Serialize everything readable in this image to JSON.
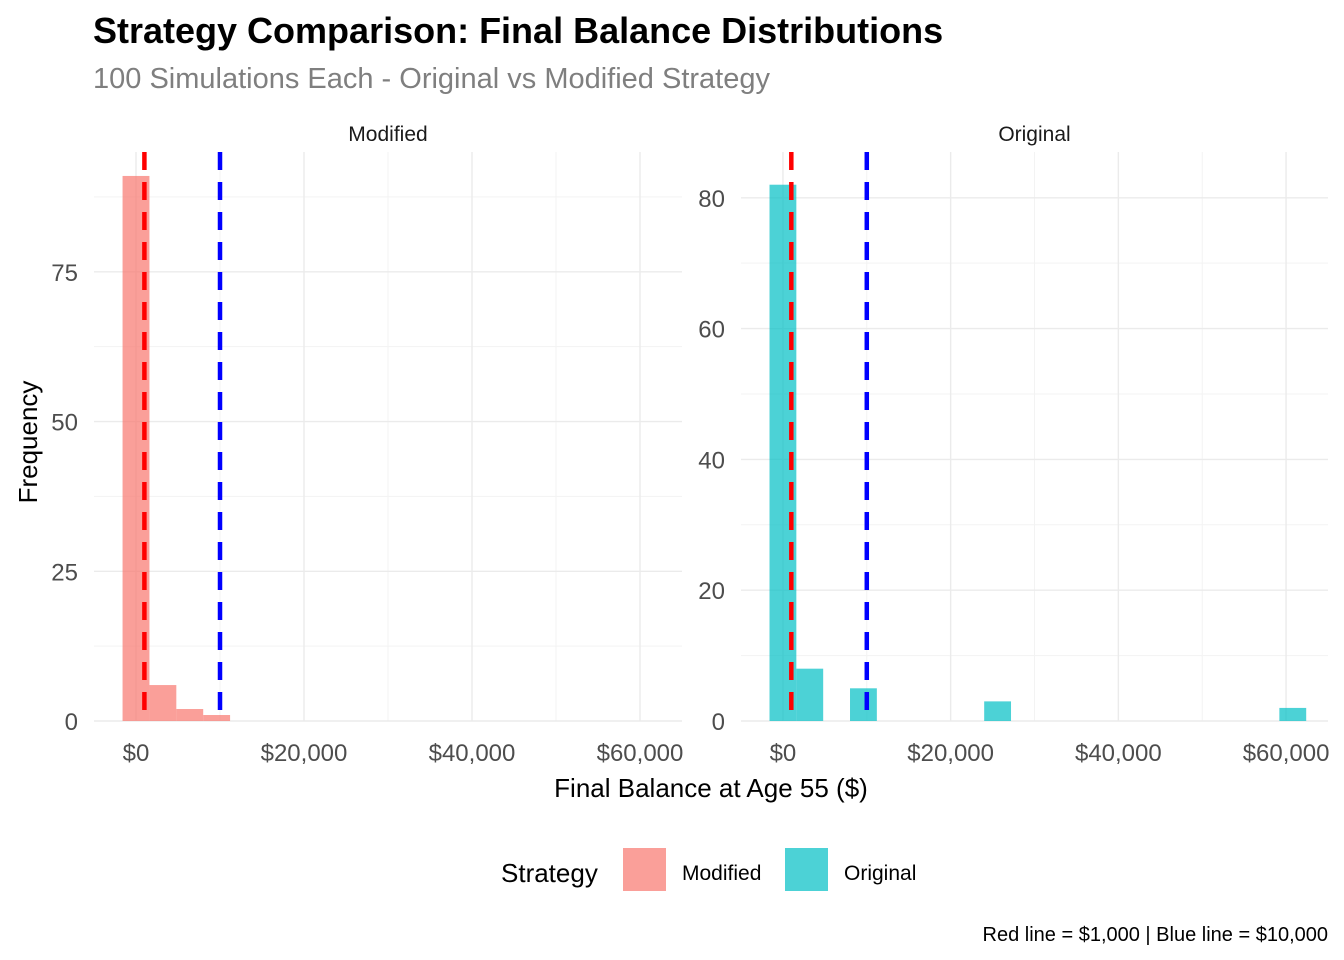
{
  "chart_data": {
    "type": "bar",
    "title": "Strategy Comparison: Final Balance Distributions",
    "subtitle": "100 Simulations Each - Original vs Modified Strategy",
    "xlabel": "Final Balance at Age 55 ($)",
    "ylabel": "Frequency",
    "caption": "Red line = $1,000 | Blue line = $10,000",
    "legend": {
      "title": "Strategy",
      "position": "bottom",
      "items": [
        {
          "label": "Modified",
          "color": "#F8766D"
        },
        {
          "label": "Original",
          "color": "#00BFC4"
        }
      ]
    },
    "bin_width": 3200,
    "reference_lines": [
      {
        "x": 1000,
        "color": "#FF0000",
        "style": "dashed"
      },
      {
        "x": 10000,
        "color": "#0000FF",
        "style": "dashed"
      }
    ],
    "grid": true,
    "panels": [
      {
        "strip": "Modified",
        "fill": "#F8766D",
        "xlim": [
          -5000,
          65000
        ],
        "ylim": [
          0,
          95
        ],
        "xticks": [
          {
            "v": 0,
            "label": "$0"
          },
          {
            "v": 20000,
            "label": "$20,000"
          },
          {
            "v": 40000,
            "label": "$40,000"
          },
          {
            "v": 60000,
            "label": "$60,000"
          }
        ],
        "yticks": [
          {
            "v": 0,
            "label": "0"
          },
          {
            "v": 25,
            "label": "25"
          },
          {
            "v": 50,
            "label": "50"
          },
          {
            "v": 75,
            "label": "75"
          }
        ],
        "bins": [
          {
            "x": 0,
            "count": 91
          },
          {
            "x": 3200,
            "count": 6
          },
          {
            "x": 6400,
            "count": 2
          },
          {
            "x": 9600,
            "count": 1
          }
        ]
      },
      {
        "strip": "Original",
        "fill": "#00BFC4",
        "xlim": [
          -5000,
          65000
        ],
        "ylim": [
          0,
          87
        ],
        "xticks": [
          {
            "v": 0,
            "label": "$0"
          },
          {
            "v": 20000,
            "label": "$20,000"
          },
          {
            "v": 40000,
            "label": "$40,000"
          },
          {
            "v": 60000,
            "label": "$60,000"
          }
        ],
        "yticks": [
          {
            "v": 0,
            "label": "0"
          },
          {
            "v": 20,
            "label": "20"
          },
          {
            "v": 40,
            "label": "40"
          },
          {
            "v": 60,
            "label": "60"
          },
          {
            "v": 80,
            "label": "80"
          }
        ],
        "bins": [
          {
            "x": 0,
            "count": 82
          },
          {
            "x": 3200,
            "count": 8
          },
          {
            "x": 9600,
            "count": 5
          },
          {
            "x": 25600,
            "count": 3
          },
          {
            "x": 60800,
            "count": 2
          }
        ]
      }
    ]
  }
}
